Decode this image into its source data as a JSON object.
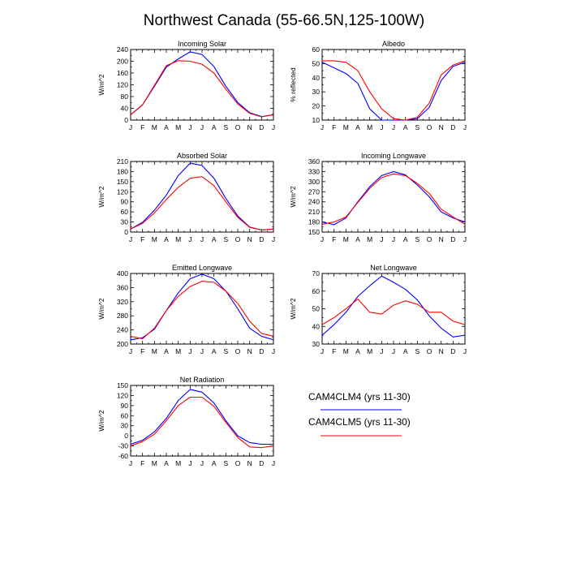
{
  "figure_title": "Northwest Canada (55-66.5N,125-100W)",
  "legend": [
    {
      "label": "CAM4CLM4 (yrs 11-30)",
      "color": "#0000ff"
    },
    {
      "label": "CAM4CLM5 (yrs 11-30)",
      "color": "#ff0000"
    }
  ],
  "chart_data": [
    {
      "type": "line",
      "title": "Incoming Solar",
      "ylabel": "W/m^2",
      "categories": [
        "J",
        "F",
        "M",
        "A",
        "M",
        "J",
        "J",
        "A",
        "S",
        "O",
        "N",
        "D",
        "J"
      ],
      "ylim": [
        0,
        240
      ],
      "yticks": [
        0,
        40,
        80,
        120,
        160,
        200,
        240
      ],
      "ytick_labels": [
        "0",
        "40",
        "80",
        "120",
        "160",
        "200",
        "240"
      ],
      "series": [
        {
          "name": "CAM4CLM4 (yrs 11-30)",
          "values": [
            18,
            52,
            115,
            180,
            208,
            232,
            223,
            182,
            115,
            60,
            25,
            12,
            18
          ]
        },
        {
          "name": "CAM4CLM5 (yrs 11-30)",
          "values": [
            18,
            52,
            118,
            185,
            202,
            200,
            190,
            160,
            105,
            55,
            23,
            11,
            18
          ]
        }
      ]
    },
    {
      "type": "line",
      "title": "Albedo",
      "ylabel": "% reflected",
      "categories": [
        "J",
        "F",
        "M",
        "A",
        "M",
        "J",
        "J",
        "A",
        "S",
        "O",
        "N",
        "D",
        "J"
      ],
      "ylim": [
        10,
        60
      ],
      "yticks": [
        10,
        20,
        30,
        40,
        50,
        60
      ],
      "ytick_labels": [
        "10",
        "20",
        "30",
        "40",
        "50",
        "60"
      ],
      "series": [
        {
          "name": "CAM4CLM4 (yrs 11-30)",
          "values": [
            51,
            47,
            43,
            36,
            18,
            10,
            10,
            10,
            11,
            19,
            38,
            48,
            51
          ]
        },
        {
          "name": "CAM4CLM5 (yrs 11-30)",
          "values": [
            52,
            52,
            51,
            45,
            30,
            18,
            11,
            10,
            12,
            22,
            42,
            49,
            52
          ]
        }
      ]
    },
    {
      "type": "line",
      "title": "Absorbed Solar",
      "ylabel": "W/m^2",
      "categories": [
        "J",
        "F",
        "M",
        "A",
        "M",
        "J",
        "J",
        "A",
        "S",
        "O",
        "N",
        "D",
        "J"
      ],
      "ylim": [
        0,
        210
      ],
      "yticks": [
        0,
        30,
        60,
        90,
        120,
        150,
        180,
        210
      ],
      "ytick_labels": [
        "0",
        "30",
        "60",
        "90",
        "120",
        "150",
        "180",
        "210"
      ],
      "series": [
        {
          "name": "CAM4CLM4 (yrs 11-30)",
          "values": [
            9,
            29,
            65,
            110,
            168,
            205,
            198,
            160,
            100,
            48,
            15,
            6,
            9
          ]
        },
        {
          "name": "CAM4CLM5 (yrs 11-30)",
          "values": [
            9,
            26,
            57,
            97,
            133,
            160,
            165,
            138,
            90,
            44,
            14,
            6,
            9
          ]
        }
      ]
    },
    {
      "type": "line",
      "title": "Incoming Longwave",
      "ylabel": "W/m^2",
      "categories": [
        "J",
        "F",
        "M",
        "A",
        "M",
        "J",
        "J",
        "A",
        "S",
        "O",
        "N",
        "D",
        "J"
      ],
      "ylim": [
        150,
        360
      ],
      "yticks": [
        150,
        180,
        210,
        240,
        270,
        300,
        330,
        360
      ],
      "ytick_labels": [
        "150",
        "180",
        "210",
        "240",
        "270",
        "300",
        "330",
        "360"
      ],
      "series": [
        {
          "name": "CAM4CLM4 (yrs 11-30)",
          "values": [
            180,
            172,
            192,
            240,
            285,
            318,
            330,
            320,
            290,
            255,
            210,
            192,
            180
          ]
        },
        {
          "name": "CAM4CLM5 (yrs 11-30)",
          "values": [
            173,
            180,
            195,
            238,
            280,
            312,
            323,
            318,
            295,
            265,
            218,
            195,
            173
          ]
        }
      ]
    },
    {
      "type": "line",
      "title": "Emitted Longwave",
      "ylabel": "W/m^2",
      "categories": [
        "J",
        "F",
        "M",
        "A",
        "M",
        "J",
        "J",
        "A",
        "S",
        "O",
        "N",
        "D",
        "J"
      ],
      "ylim": [
        200,
        400
      ],
      "yticks": [
        200,
        240,
        280,
        320,
        360,
        400
      ],
      "ytick_labels": [
        "200",
        "240",
        "280",
        "320",
        "360",
        "400"
      ],
      "series": [
        {
          "name": "CAM4CLM4 (yrs 11-30)",
          "values": [
            212,
            218,
            242,
            295,
            345,
            385,
            398,
            385,
            350,
            300,
            245,
            222,
            212
          ]
        },
        {
          "name": "CAM4CLM5 (yrs 11-30)",
          "values": [
            222,
            215,
            245,
            295,
            335,
            363,
            378,
            375,
            350,
            315,
            265,
            230,
            222
          ]
        }
      ]
    },
    {
      "type": "line",
      "title": "Net Longwave",
      "ylabel": "W/m^2",
      "categories": [
        "J",
        "F",
        "M",
        "A",
        "M",
        "J",
        "J",
        "A",
        "S",
        "O",
        "N",
        "D",
        "J"
      ],
      "ylim": [
        30,
        70
      ],
      "yticks": [
        30,
        40,
        50,
        60,
        70
      ],
      "ytick_labels": [
        "30",
        "40",
        "50",
        "60",
        "70"
      ],
      "series": [
        {
          "name": "CAM4CLM4 (yrs 11-30)",
          "values": [
            35,
            41,
            48,
            57,
            63,
            68.5,
            65,
            61,
            55,
            46,
            39,
            34,
            35
          ]
        },
        {
          "name": "CAM4CLM5 (yrs 11-30)",
          "values": [
            41,
            45,
            50,
            55.5,
            48,
            47,
            52,
            54.5,
            52.5,
            48,
            48,
            43,
            41
          ]
        }
      ]
    },
    {
      "type": "line",
      "title": "Net Radiation",
      "ylabel": "W/m^2",
      "categories": [
        "J",
        "F",
        "M",
        "A",
        "M",
        "J",
        "J",
        "A",
        "S",
        "O",
        "N",
        "D",
        "J"
      ],
      "ylim": [
        -60,
        150
      ],
      "yticks": [
        -60,
        -30,
        0,
        30,
        60,
        90,
        120,
        150
      ],
      "ytick_labels": [
        "-60",
        "-30",
        "0",
        "30",
        "60",
        "90",
        "120",
        "150"
      ],
      "series": [
        {
          "name": "CAM4CLM4 (yrs 11-30)",
          "values": [
            -25,
            -13,
            12,
            52,
            105,
            138,
            130,
            98,
            45,
            0,
            -20,
            -25,
            -25
          ]
        },
        {
          "name": "CAM4CLM5 (yrs 11-30)",
          "values": [
            -30,
            -17,
            5,
            45,
            90,
            115,
            115,
            88,
            40,
            -5,
            -33,
            -35,
            -30
          ]
        }
      ]
    }
  ]
}
